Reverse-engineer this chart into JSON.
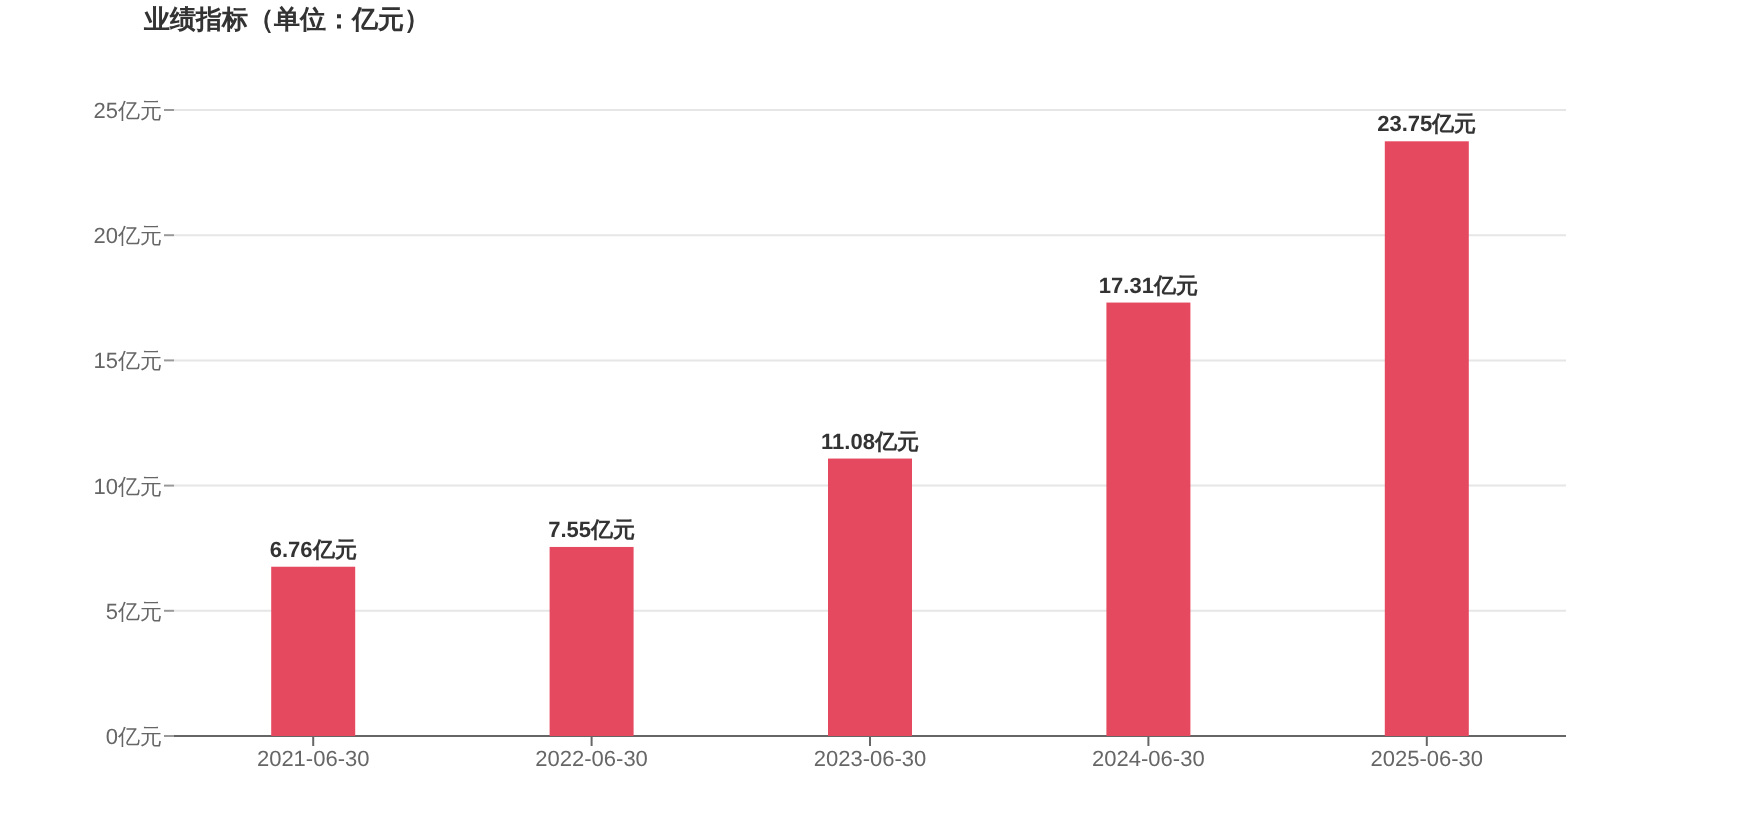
{
  "chart_data": {
    "type": "bar",
    "title": "业绩指标（单位：亿元）",
    "categories": [
      "2021-06-30",
      "2022-06-30",
      "2023-06-30",
      "2024-06-30",
      "2025-06-30"
    ],
    "values": [
      6.76,
      7.55,
      11.08,
      17.31,
      23.75
    ],
    "value_labels": [
      "6.76亿元",
      "7.55亿元",
      "11.08亿元",
      "17.31亿元",
      "23.75亿元"
    ],
    "color": "#e5495f",
    "ylim": [
      0,
      25
    ],
    "yticks": [
      {
        "value": 0,
        "label": "0亿元"
      },
      {
        "value": 5,
        "label": "5亿元"
      },
      {
        "value": 10,
        "label": "10亿元"
      },
      {
        "value": 15,
        "label": "15亿元"
      },
      {
        "value": 20,
        "label": "20亿元"
      },
      {
        "value": 25,
        "label": "25亿元"
      }
    ],
    "grid": "y"
  }
}
